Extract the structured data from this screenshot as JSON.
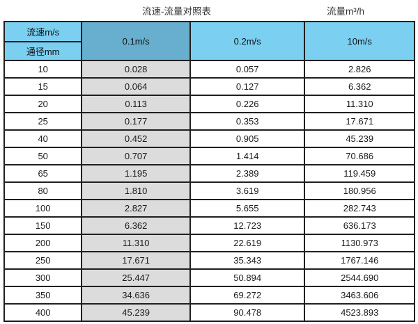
{
  "header": {
    "caption": "流速-流量对照表",
    "unit_label": "流量m³/h"
  },
  "table": {
    "corner_top": "流速m/s",
    "corner_bottom": "通径mm",
    "velocity_columns": [
      "0.1m/s",
      "0.2m/s",
      "10m/s"
    ],
    "rows": [
      {
        "dn": "10",
        "v": [
          "0.028",
          "0.057",
          "2.826"
        ]
      },
      {
        "dn": "15",
        "v": [
          "0.064",
          "0.127",
          "6.362"
        ]
      },
      {
        "dn": "20",
        "v": [
          "0.113",
          "0.226",
          "11.310"
        ]
      },
      {
        "dn": "25",
        "v": [
          "0.177",
          "0.353",
          "17.671"
        ]
      },
      {
        "dn": "40",
        "v": [
          "0.452",
          "0.905",
          "45.239"
        ]
      },
      {
        "dn": "50",
        "v": [
          "0.707",
          "1.414",
          "70.686"
        ]
      },
      {
        "dn": "65",
        "v": [
          "1.195",
          "2.389",
          "119.459"
        ]
      },
      {
        "dn": "80",
        "v": [
          "1.810",
          "3.619",
          "180.956"
        ]
      },
      {
        "dn": "100",
        "v": [
          "2.827",
          "5.655",
          "282.743"
        ]
      },
      {
        "dn": "150",
        "v": [
          "6.362",
          "12.723",
          "636.173"
        ]
      },
      {
        "dn": "200",
        "v": [
          "11.310",
          "22.619",
          "1130.973"
        ]
      },
      {
        "dn": "250",
        "v": [
          "17.671",
          "35.343",
          "1767.146"
        ]
      },
      {
        "dn": "300",
        "v": [
          "25.447",
          "50.894",
          "2544.690"
        ]
      },
      {
        "dn": "350",
        "v": [
          "34.636",
          "69.272",
          "3463.606"
        ]
      },
      {
        "dn": "400",
        "v": [
          "45.239",
          "90.478",
          "4523.893"
        ]
      }
    ]
  },
  "colors": {
    "header_blue": "#7bcff1",
    "selected_column_blue": "#68aece",
    "shaded_column_gray": "#dcdcdc",
    "grid_border": "#1f1f1f",
    "text": "#1a1a1a"
  },
  "chart_data": {
    "type": "table",
    "title": "流速-流量对照表",
    "unit_note": "流量m³/h",
    "column_header_label": "流速m/s",
    "row_header_label": "通径mm",
    "columns": [
      "0.1m/s",
      "0.2m/s",
      "10m/s"
    ],
    "diameters_mm": [
      10,
      15,
      20,
      25,
      40,
      50,
      65,
      80,
      100,
      150,
      200,
      250,
      300,
      350,
      400
    ],
    "series": [
      {
        "name": "0.1m/s",
        "values": [
          0.028,
          0.064,
          0.113,
          0.177,
          0.452,
          0.707,
          1.195,
          1.81,
          2.827,
          6.362,
          11.31,
          17.671,
          25.447,
          34.636,
          45.239
        ]
      },
      {
        "name": "0.2m/s",
        "values": [
          0.057,
          0.127,
          0.226,
          0.353,
          0.905,
          1.414,
          2.389,
          3.619,
          5.655,
          12.723,
          22.619,
          35.343,
          50.894,
          69.272,
          90.478
        ]
      },
      {
        "name": "10m/s",
        "values": [
          2.826,
          6.362,
          11.31,
          17.671,
          45.239,
          70.686,
          119.459,
          180.956,
          282.743,
          636.173,
          1130.973,
          1767.146,
          2544.69,
          3463.606,
          4523.893
        ]
      }
    ]
  }
}
